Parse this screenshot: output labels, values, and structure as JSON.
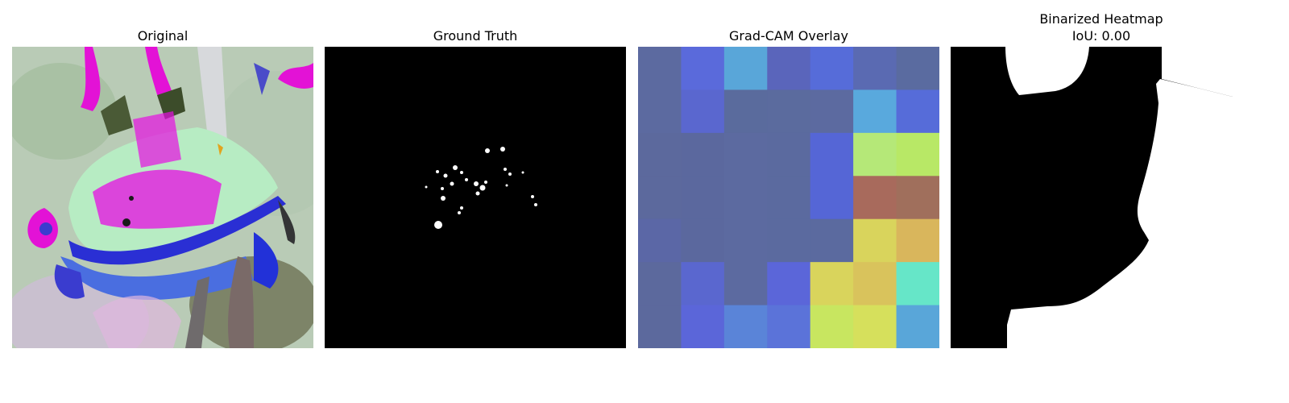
{
  "panels": [
    {
      "title": "Original"
    },
    {
      "title": "Ground Truth"
    },
    {
      "title": "Grad-CAM Overlay"
    },
    {
      "title": "Binarized Heatmap",
      "subtitle": "IoU: 0.00"
    }
  ],
  "gradcam_grid": [
    [
      "#5c6aa0",
      "#5a6adb",
      "#59a6d9",
      "#5a65bb",
      "#566cd9",
      "#5a6ab2",
      "#5a6ba0"
    ],
    [
      "#5c6aa0",
      "#5a67cf",
      "#5a6b9d",
      "#5b6b9e",
      "#5c6aa0",
      "#59a9dd",
      "#566cd9"
    ],
    [
      "#5c699d",
      "#5b689e",
      "#5c6aa0",
      "#5b6a9f",
      "#5566d6",
      "#b5e878",
      "#b8e866"
    ],
    [
      "#5c699d",
      "#5b689e",
      "#5c6aa0",
      "#5b6a9f",
      "#5566d6",
      "#a86a5c",
      "#a06f5c"
    ],
    [
      "#5b67a6",
      "#5b689e",
      "#5c6aa0",
      "#5b6a9f",
      "#5b6a9f",
      "#d9d45c",
      "#d9b65c"
    ],
    [
      "#5c699d",
      "#5a67cf",
      "#5c6aa0",
      "#5b66d9",
      "#d9d45c",
      "#d9c35c",
      "#66e6c8"
    ],
    [
      "#5c699d",
      "#5b66d9",
      "#5a84d8",
      "#5b73d9",
      "#c8e660",
      "#d6e05c",
      "#59a6d9"
    ]
  ]
}
